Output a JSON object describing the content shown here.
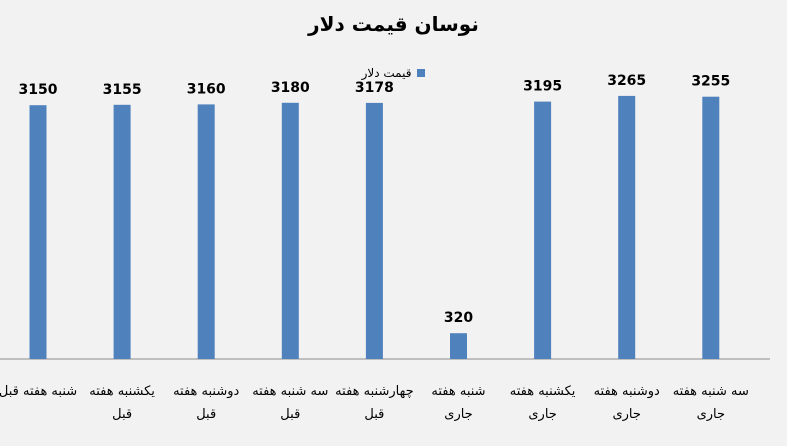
{
  "chart_data": {
    "type": "bar",
    "title": "نوسان قیمت دلار",
    "legend": {
      "position": "top",
      "entries": [
        "قیمت دلار"
      ]
    },
    "categories": [
      "شنبه هفته قبل",
      "یکشنبه هفته قبل",
      "دوشنبه هفته قبل",
      "سه شنبه هفته قبل",
      "چهارشنبه هفته قبل",
      "شنبه هفته جاری",
      "یکشنبه هفته جاری",
      "دوشنبه هفته جاری",
      "سه شنبه هفته جاری"
    ],
    "series": [
      {
        "name": "قیمت دلار",
        "values": [
          3150,
          3155,
          3160,
          3180,
          3178,
          320,
          3195,
          3265,
          3255
        ],
        "color": "#4f81bd"
      }
    ],
    "data_labels": true,
    "ylim": [
      0,
      3500
    ],
    "grid": false
  }
}
